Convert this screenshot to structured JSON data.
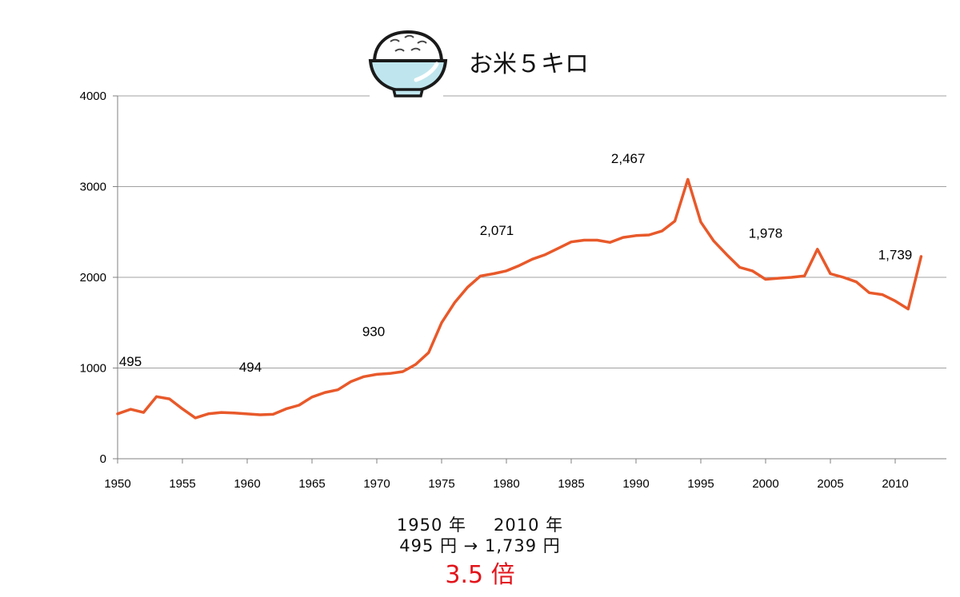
{
  "chart_data": {
    "type": "line",
    "title": "お米５キロ",
    "x": [
      1950,
      1951,
      1952,
      1953,
      1954,
      1955,
      1956,
      1957,
      1958,
      1959,
      1960,
      1961,
      1962,
      1963,
      1964,
      1965,
      1966,
      1967,
      1968,
      1969,
      1970,
      1971,
      1972,
      1973,
      1974,
      1975,
      1976,
      1977,
      1978,
      1979,
      1980,
      1981,
      1982,
      1983,
      1984,
      1985,
      1986,
      1987,
      1988,
      1989,
      1990,
      1991,
      1992,
      1993,
      1994,
      1995,
      1996,
      1997,
      1998,
      1999,
      2000,
      2001,
      2002,
      2003,
      2004,
      2005,
      2006,
      2007,
      2008,
      2009,
      2010,
      2011,
      2012
    ],
    "series": [
      {
        "values": [
          495,
          545,
          510,
          685,
          660,
          550,
          450,
          495,
          510,
          505,
          494,
          485,
          490,
          550,
          590,
          680,
          730,
          760,
          850,
          905,
          930,
          940,
          960,
          1040,
          1170,
          1500,
          1720,
          1890,
          2015,
          2040,
          2071,
          2130,
          2200,
          2250,
          2320,
          2390,
          2410,
          2410,
          2385,
          2440,
          2460,
          2467,
          2510,
          2620,
          3080,
          2610,
          2400,
          2250,
          2110,
          2070,
          1978,
          1990,
          2000,
          2015,
          2310,
          2040,
          2000,
          1950,
          1830,
          1810,
          1739,
          1650,
          2230
        ]
      }
    ],
    "xlim": [
      1950,
      2012
    ],
    "ylim": [
      0,
      4000
    ],
    "x_ticks": [
      1950,
      1955,
      1960,
      1965,
      1970,
      1975,
      1980,
      1985,
      1990,
      1995,
      2000,
      2005,
      2010
    ],
    "y_ticks": [
      0,
      1000,
      2000,
      3000,
      4000
    ],
    "grid": "horizontal",
    "line_color": "#e8592a",
    "annotations": [
      {
        "text": "495",
        "x": 1950,
        "y": 495
      },
      {
        "text": "494",
        "x": 1960,
        "y": 494
      },
      {
        "text": "930",
        "x": 1970,
        "y": 930
      },
      {
        "text": "2,071",
        "x": 1980,
        "y": 2071
      },
      {
        "text": "2,467",
        "x": 1991,
        "y": 2467
      },
      {
        "text": "1,978",
        "x": 2000,
        "y": 1978
      },
      {
        "text": "1,739",
        "x": 2010,
        "y": 1739
      }
    ]
  },
  "footer": {
    "year_from": "1950 年",
    "year_to": "2010 年",
    "price_change": "495 円 → 1,739 円",
    "ratio": "3.5 倍",
    "ratio_color": "#e3141b"
  },
  "icon": "rice-bowl-icon"
}
